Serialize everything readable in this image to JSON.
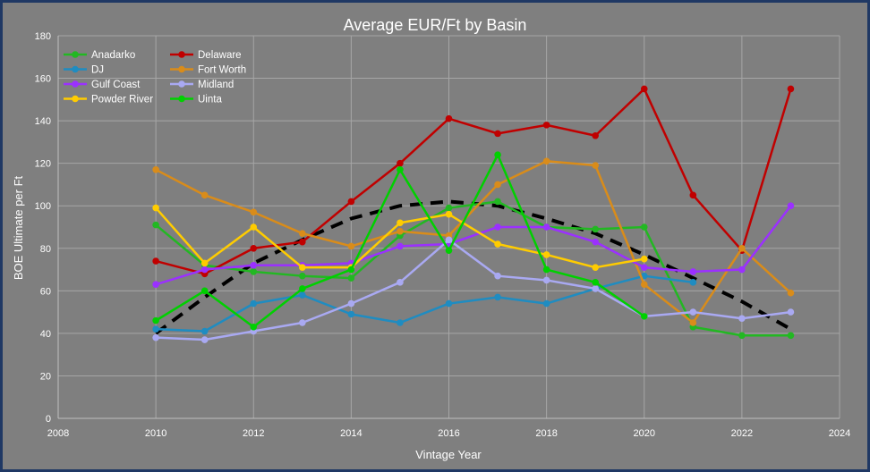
{
  "chart_data": {
    "type": "line",
    "title": "Average EUR/Ft by Basin",
    "xlabel": "Vintage Year",
    "ylabel": "BOE Ultimate per Ft",
    "xlim": [
      2008,
      2024
    ],
    "ylim": [
      0,
      180
    ],
    "xticks": [
      2008,
      2010,
      2012,
      2014,
      2016,
      2018,
      2020,
      2022,
      2024
    ],
    "yticks": [
      0,
      20,
      40,
      60,
      80,
      100,
      120,
      140,
      160,
      180
    ],
    "grid": true,
    "legend_position": "top-left",
    "x": [
      2010,
      2011,
      2012,
      2013,
      2014,
      2015,
      2016,
      2017,
      2018,
      2019,
      2020,
      2021,
      2022,
      2023
    ],
    "series": [
      {
        "name": "Anadarko",
        "color": "#22b822",
        "values": [
          91,
          72,
          69,
          67,
          66,
          86,
          99,
          102,
          90,
          89,
          90,
          43,
          39,
          39
        ]
      },
      {
        "name": "Delaware",
        "color": "#c00000",
        "values": [
          74,
          68,
          80,
          83,
          102,
          120,
          141,
          134,
          138,
          133,
          155,
          105,
          79,
          155
        ]
      },
      {
        "name": "DJ",
        "color": "#1f8cc1",
        "values": [
          42,
          41,
          54,
          58,
          49,
          45,
          54,
          57,
          54,
          61,
          67,
          64,
          null,
          null
        ]
      },
      {
        "name": "Fort Worth",
        "color": "#d98c1a",
        "values": [
          117,
          105,
          97,
          87,
          81,
          88,
          86,
          110,
          121,
          119,
          63,
          45,
          80,
          59
        ]
      },
      {
        "name": "Gulf Coast",
        "color": "#9b30ff",
        "values": [
          63,
          70,
          72,
          72,
          73,
          81,
          82,
          90,
          90,
          83,
          71,
          69,
          70,
          100
        ]
      },
      {
        "name": "Midland",
        "color": "#a9a9f2",
        "values": [
          38,
          37,
          41,
          45,
          54,
          64,
          84,
          67,
          65,
          61,
          48,
          50,
          47,
          50
        ]
      },
      {
        "name": "Powder River",
        "color": "#ffcc00",
        "values": [
          99,
          73,
          90,
          71,
          71,
          92,
          96,
          82,
          77,
          71,
          75,
          null,
          null,
          null
        ]
      },
      {
        "name": "Uinta",
        "color": "#00d000",
        "values": [
          46,
          60,
          43,
          61,
          70,
          117,
          79,
          124,
          70,
          64,
          48,
          null,
          null,
          null
        ]
      }
    ],
    "trend_line": {
      "color": "#000000",
      "dashed": true,
      "values": [
        40,
        57,
        73,
        84,
        94,
        100,
        102,
        100,
        94,
        87,
        77,
        66,
        55,
        42
      ]
    }
  }
}
